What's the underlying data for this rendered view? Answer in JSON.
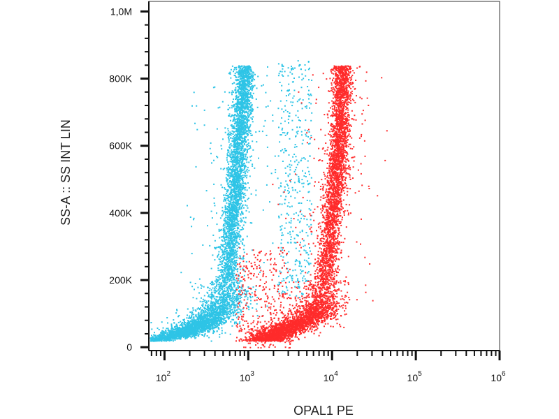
{
  "chart_data": {
    "type": "scatter",
    "xlabel": "OPAL1 PE",
    "ylabel": "SS-A :: SS INT LIN",
    "x_scale": "log",
    "xlim": [
      65,
      1000000
    ],
    "ylim": [
      -10000,
      1030000
    ],
    "x_ticks": [
      {
        "value": 100,
        "base": "10",
        "exp": "2"
      },
      {
        "value": 1000,
        "base": "10",
        "exp": "3"
      },
      {
        "value": 10000,
        "base": "10",
        "exp": "4"
      },
      {
        "value": 100000,
        "base": "10",
        "exp": "5"
      },
      {
        "value": 1000000,
        "base": "10",
        "exp": "6"
      }
    ],
    "y_ticks": [
      {
        "value": 0,
        "label": "0"
      },
      {
        "value": 200000,
        "label": "200K"
      },
      {
        "value": 400000,
        "label": "400K"
      },
      {
        "value": 600000,
        "label": "600K"
      },
      {
        "value": 800000,
        "label": "800K"
      },
      {
        "value": 1000000,
        "label": "1,0M"
      }
    ],
    "grid": false,
    "series": [
      {
        "color": "#2ec4e6",
        "spine": [
          [
            65,
            20000
          ],
          [
            150,
            40000
          ],
          [
            250,
            65000
          ],
          [
            400,
            100000
          ],
          [
            520,
            150000
          ],
          [
            580,
            250000
          ],
          [
            640,
            380000
          ],
          [
            700,
            500000
          ],
          [
            760,
            600000
          ],
          [
            820,
            700000
          ],
          [
            880,
            800000
          ]
        ],
        "bands": [
          {
            "logx_min": 3.35,
            "logx_max": 3.75,
            "y_min": 150000,
            "y_max": 860000,
            "count": 420
          }
        ],
        "point_count": 6000
      },
      {
        "color": "#ff2b2b",
        "spine": [
          [
            1500,
            20000
          ],
          [
            3000,
            60000
          ],
          [
            6000,
            100000
          ],
          [
            7500,
            150000
          ],
          [
            8500,
            250000
          ],
          [
            10000,
            400000
          ],
          [
            11000,
            500000
          ],
          [
            12000,
            600000
          ],
          [
            12500,
            700000
          ],
          [
            13000,
            800000
          ]
        ],
        "bands": [
          {
            "logx_min": 2.85,
            "logx_max": 3.5,
            "y_min": 0,
            "y_max": 300000,
            "count": 350
          }
        ],
        "point_count": 6000
      }
    ]
  }
}
